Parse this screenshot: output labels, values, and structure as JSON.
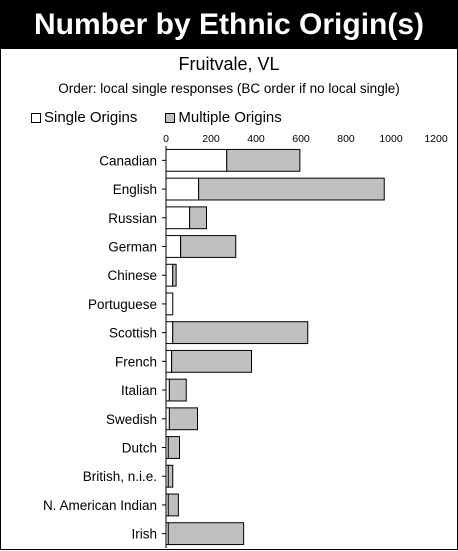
{
  "chart_data": {
    "type": "bar",
    "stacked": true,
    "orientation": "horizontal",
    "title": "Number by Ethnic Origin(s)",
    "subtitle": "Fruitvale, VL",
    "note": "Order: local single responses (BC order if no local single)",
    "categories": [
      "Canadian",
      "English",
      "Russian",
      "German",
      "Chinese",
      "Portuguese",
      "Scottish",
      "French",
      "Italian",
      "Swedish",
      "Dutch",
      "British, n.i.e.",
      "N. American Indian",
      "Irish"
    ],
    "series": [
      {
        "name": "Single Origins",
        "values": [
          270,
          145,
          105,
          65,
          30,
          30,
          30,
          25,
          15,
          15,
          10,
          10,
          10,
          10
        ],
        "color": "#ffffff"
      },
      {
        "name": "Multiple Origins",
        "values": [
          325,
          825,
          75,
          245,
          15,
          0,
          600,
          355,
          75,
          125,
          50,
          20,
          45,
          335
        ],
        "color": "#c0c0c0"
      }
    ],
    "x_ticks": [
      "0",
      "200",
      "400",
      "600",
      "800",
      "1000",
      "1200"
    ],
    "xlim": [
      0,
      1200
    ],
    "legend_position": "top"
  }
}
